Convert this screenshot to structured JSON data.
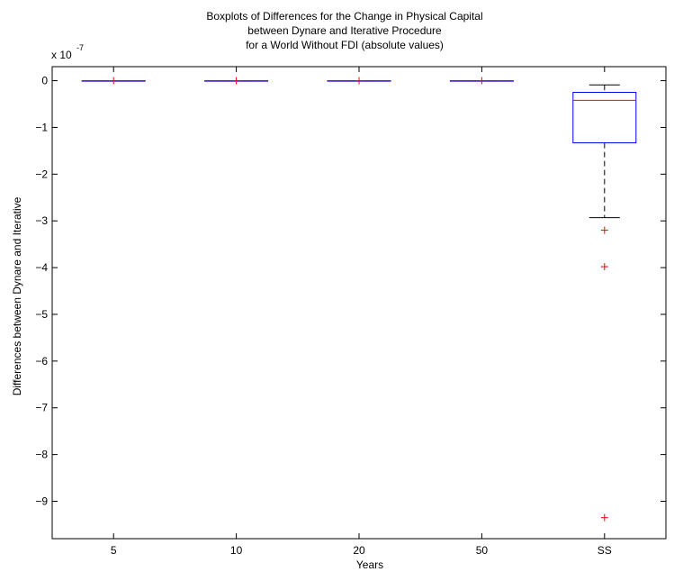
{
  "chart_data": {
    "type": "boxplot",
    "title": [
      "Boxplots of Differences for the Change in Physical Capital",
      "between Dynare and Iterative Procedure",
      "for a World Without FDI (absolute values)"
    ],
    "xlabel": "Years",
    "ylabel": "Differences between Dynare and Iterative",
    "y_multiplier_label": "x 10",
    "y_multiplier_exponent": "-7",
    "ylim": [
      -9.8,
      0.3
    ],
    "yticks": [
      0,
      -1,
      -2,
      -3,
      -4,
      -5,
      -6,
      -7,
      -8,
      -9
    ],
    "ytick_labels": [
      "0",
      "−1",
      "−2",
      "−3",
      "−4",
      "−5",
      "−6",
      "−7",
      "−8",
      "−9"
    ],
    "categories": [
      "5",
      "10",
      "20",
      "50",
      "SS"
    ],
    "boxes": [
      {
        "category": "5",
        "whisker_low": 0,
        "q1": 0,
        "median": 0,
        "q3": 0,
        "whisker_high": 0,
        "outliers": [
          0
        ]
      },
      {
        "category": "10",
        "whisker_low": 0,
        "q1": 0,
        "median": 0,
        "q3": 0,
        "whisker_high": 0,
        "outliers": [
          0
        ]
      },
      {
        "category": "20",
        "whisker_low": 0,
        "q1": 0,
        "median": 0,
        "q3": 0,
        "whisker_high": 0,
        "outliers": [
          0
        ]
      },
      {
        "category": "50",
        "whisker_low": 0,
        "q1": 0,
        "median": 0,
        "q3": 0,
        "whisker_high": 0,
        "outliers": [
          0
        ]
      },
      {
        "category": "SS",
        "whisker_low": -2.93,
        "q1": -1.33,
        "median": -0.42,
        "q3": -0.25,
        "whisker_high": -0.09,
        "outliers": [
          -3.2,
          -3.98,
          -9.35
        ]
      }
    ],
    "grid": false,
    "colors": {
      "box": "#0000ff",
      "median": "#ff0000",
      "whisker": "#000000",
      "outlier": "#ff0000"
    }
  }
}
